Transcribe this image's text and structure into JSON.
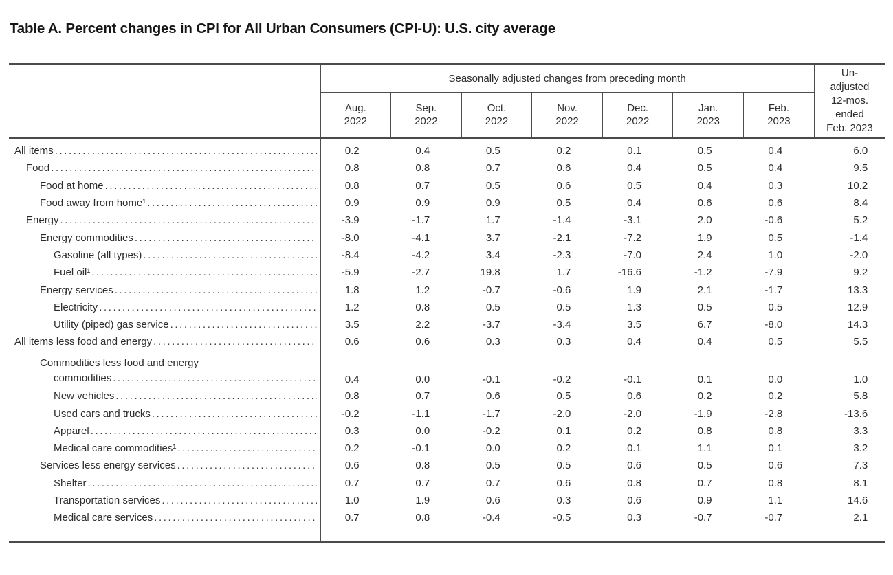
{
  "page_title": "Table A. Percent changes in CPI for All Urban Consumers (CPI-U): U.S. city average",
  "table": {
    "group_header": "Seasonally adjusted changes from preceding month",
    "unadjusted_header_lines": [
      "Un-",
      "adjusted",
      "12-mos.",
      "ended",
      "Feb. 2023"
    ],
    "month_headers": [
      {
        "month": "Aug.",
        "year": "2022"
      },
      {
        "month": "Sep.",
        "year": "2022"
      },
      {
        "month": "Oct.",
        "year": "2022"
      },
      {
        "month": "Nov.",
        "year": "2022"
      },
      {
        "month": "Dec.",
        "year": "2022"
      },
      {
        "month": "Jan.",
        "year": "2023"
      },
      {
        "month": "Feb.",
        "year": "2023"
      }
    ],
    "rows": [
      {
        "label": "All items",
        "indent": 0,
        "values": [
          "0.2",
          "0.4",
          "0.5",
          "0.2",
          "0.1",
          "0.5",
          "0.4",
          "6.0"
        ]
      },
      {
        "label": "Food",
        "indent": 1,
        "values": [
          "0.8",
          "0.8",
          "0.7",
          "0.6",
          "0.4",
          "0.5",
          "0.4",
          "9.5"
        ]
      },
      {
        "label": "Food at home",
        "indent": 2,
        "values": [
          "0.8",
          "0.7",
          "0.5",
          "0.6",
          "0.5",
          "0.4",
          "0.3",
          "10.2"
        ]
      },
      {
        "label": "Food away from home¹",
        "indent": 2,
        "values": [
          "0.9",
          "0.9",
          "0.9",
          "0.5",
          "0.4",
          "0.6",
          "0.6",
          "8.4"
        ]
      },
      {
        "label": "Energy",
        "indent": 1,
        "values": [
          "-3.9",
          "-1.7",
          "1.7",
          "-1.4",
          "-3.1",
          "2.0",
          "-0.6",
          "5.2"
        ]
      },
      {
        "label": "Energy commodities",
        "indent": 2,
        "values": [
          "-8.0",
          "-4.1",
          "3.7",
          "-2.1",
          "-7.2",
          "1.9",
          "0.5",
          "-1.4"
        ]
      },
      {
        "label": "Gasoline (all types)",
        "indent": 3,
        "values": [
          "-8.4",
          "-4.2",
          "3.4",
          "-2.3",
          "-7.0",
          "2.4",
          "1.0",
          "-2.0"
        ]
      },
      {
        "label": "Fuel oil¹",
        "indent": 3,
        "values": [
          "-5.9",
          "-2.7",
          "19.8",
          "1.7",
          "-16.6",
          "-1.2",
          "-7.9",
          "9.2"
        ]
      },
      {
        "label": "Energy services",
        "indent": 2,
        "values": [
          "1.8",
          "1.2",
          "-0.7",
          "-0.6",
          "1.9",
          "2.1",
          "-1.7",
          "13.3"
        ]
      },
      {
        "label": "Electricity",
        "indent": 3,
        "values": [
          "1.2",
          "0.8",
          "0.5",
          "0.5",
          "1.3",
          "0.5",
          "0.5",
          "12.9"
        ]
      },
      {
        "label": "Utility (piped) gas service",
        "indent": 3,
        "values": [
          "3.5",
          "2.2",
          "-3.7",
          "-3.4",
          "3.5",
          "6.7",
          "-8.0",
          "14.3"
        ]
      },
      {
        "label": "All items less food and energy",
        "indent": 0,
        "values": [
          "0.6",
          "0.6",
          "0.3",
          "0.3",
          "0.4",
          "0.4",
          "0.5",
          "5.5"
        ]
      },
      {
        "label": "Commodities less food and energy",
        "label2": "commodities",
        "indent": 2,
        "indent2": 3,
        "values": [
          "0.4",
          "0.0",
          "-0.1",
          "-0.2",
          "-0.1",
          "0.1",
          "0.0",
          "1.0"
        ]
      },
      {
        "label": "New vehicles",
        "indent": 3,
        "values": [
          "0.8",
          "0.7",
          "0.6",
          "0.5",
          "0.6",
          "0.2",
          "0.2",
          "5.8"
        ]
      },
      {
        "label": "Used cars and trucks",
        "indent": 3,
        "values": [
          "-0.2",
          "-1.1",
          "-1.7",
          "-2.0",
          "-2.0",
          "-1.9",
          "-2.8",
          "-13.6"
        ]
      },
      {
        "label": "Apparel",
        "indent": 3,
        "values": [
          "0.3",
          "0.0",
          "-0.2",
          "0.1",
          "0.2",
          "0.8",
          "0.8",
          "3.3"
        ]
      },
      {
        "label": "Medical care commodities¹",
        "indent": 3,
        "values": [
          "0.2",
          "-0.1",
          "0.0",
          "0.2",
          "0.1",
          "1.1",
          "0.1",
          "3.2"
        ]
      },
      {
        "label": "Services less energy services",
        "indent": 2,
        "values": [
          "0.6",
          "0.8",
          "0.5",
          "0.5",
          "0.6",
          "0.5",
          "0.6",
          "7.3"
        ]
      },
      {
        "label": "Shelter",
        "indent": 3,
        "values": [
          "0.7",
          "0.7",
          "0.7",
          "0.6",
          "0.8",
          "0.7",
          "0.8",
          "8.1"
        ]
      },
      {
        "label": "Transportation services",
        "indent": 3,
        "values": [
          "1.0",
          "1.9",
          "0.6",
          "0.3",
          "0.6",
          "0.9",
          "1.1",
          "14.6"
        ]
      },
      {
        "label": "Medical care services",
        "indent": 3,
        "values": [
          "0.7",
          "0.8",
          "-0.4",
          "-0.5",
          "0.3",
          "-0.7",
          "-0.7",
          "2.1"
        ]
      }
    ]
  }
}
